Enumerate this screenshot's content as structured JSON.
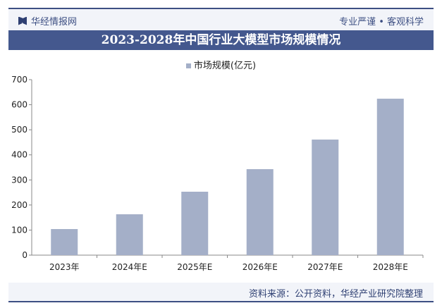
{
  "header": {
    "brand": "华经情报网",
    "slogan": "专业严谨 • 客观科学"
  },
  "title": "2023-2028年中国行业大模型市场规模情况",
  "source": "资料来源：公开资料，华经产业研究院整理",
  "colors": {
    "bar": "#a4afc8",
    "title_bg": "#44588e",
    "accent": "#3d4f83"
  },
  "chart_data": {
    "type": "bar",
    "title": "2023-2028年中国行业大模型市场规模情况",
    "categories": [
      "2023年",
      "2024年E",
      "2025年E",
      "2026年E",
      "2027年E",
      "2028年E"
    ],
    "series": [
      {
        "name": "市场规模(亿元)",
        "values": [
          104,
          163,
          253,
          343,
          461,
          624
        ]
      }
    ],
    "ylim": [
      0,
      700
    ],
    "yticks": [
      0,
      100,
      200,
      300,
      400,
      500,
      600,
      700
    ],
    "grid": false,
    "legend": "top"
  }
}
